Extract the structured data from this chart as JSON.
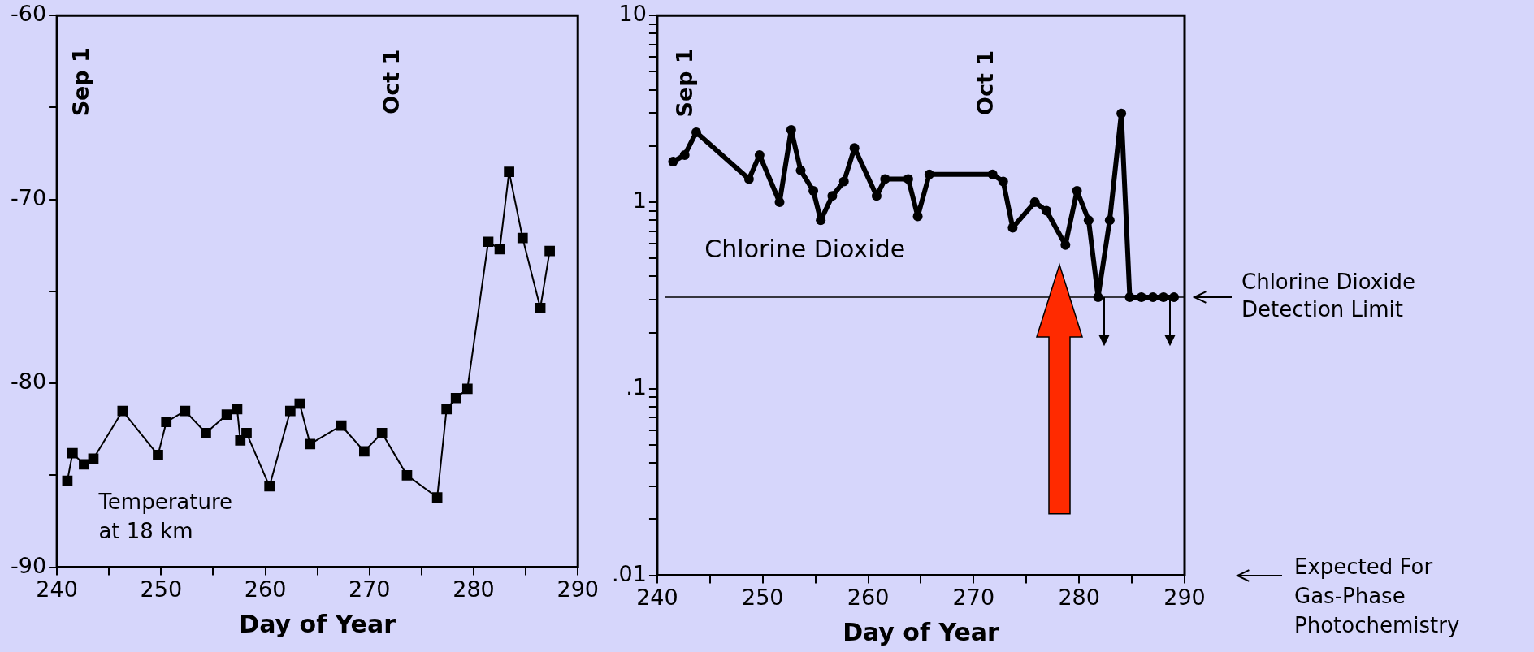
{
  "chart_data": [
    {
      "type": "line",
      "xlabel": "Day of Year",
      "marker": "square",
      "line_style": "solid",
      "legend": false,
      "grid": false,
      "xlim": [
        240,
        290
      ],
      "xticks": [
        240,
        {
          "value": 245,
          "label": null
        },
        250,
        {
          "value": 255,
          "label": null
        },
        260,
        {
          "value": 265,
          "label": null
        },
        270,
        {
          "value": 275,
          "label": null
        },
        280,
        {
          "value": 285,
          "label": null
        },
        290
      ],
      "ylim": [
        -90,
        -60
      ],
      "yticks": [
        -90,
        {
          "value": -85,
          "label": null
        },
        -80,
        {
          "value": -75,
          "label": null
        },
        -70,
        {
          "value": -65,
          "label": null
        },
        -60
      ],
      "annotations": [
        "Sep 1",
        "Oct 1"
      ],
      "series": [
        {
          "name": "Temperature at 18 km",
          "color": "#000000",
          "x": [
            241.0,
            241.5,
            242.6,
            243.5,
            246.3,
            249.7,
            250.5,
            252.3,
            254.3,
            256.3,
            257.3,
            257.6,
            258.2,
            260.4,
            262.4,
            263.3,
            264.3,
            267.3,
            269.5,
            271.2,
            273.6,
            276.5,
            277.4,
            278.3,
            279.4,
            281.4,
            282.5,
            283.4,
            284.7,
            286.4,
            287.3
          ],
          "values": [
            -85.3,
            -83.8,
            -84.4,
            -84.1,
            -81.5,
            -83.9,
            -82.1,
            -81.5,
            -82.7,
            -81.7,
            -81.4,
            -83.1,
            -82.7,
            -85.6,
            -81.5,
            -81.1,
            -83.3,
            -82.3,
            -83.7,
            -82.7,
            -85.0,
            -86.2,
            -81.4,
            -80.8,
            -80.3,
            -72.3,
            -72.7,
            -68.5,
            -72.1,
            -75.9,
            -72.8
          ]
        }
      ]
    },
    {
      "type": "line",
      "xlabel": "Day of Year",
      "marker": "circle",
      "line_style": "solid",
      "legend": false,
      "grid": false,
      "log": "y",
      "xlim": [
        240,
        290
      ],
      "xticks": [
        240,
        {
          "value": 245,
          "label": null
        },
        250,
        {
          "value": 255,
          "label": null
        },
        260,
        {
          "value": 265,
          "label": null
        },
        270,
        {
          "value": 275,
          "label": null
        },
        280,
        {
          "value": 285,
          "label": null
        },
        290
      ],
      "ylim": [
        0.01,
        10
      ],
      "yticks": [
        {
          "value": 0.01,
          "label": ".01"
        },
        {
          "value": 0.02,
          "label": null
        },
        {
          "value": 0.03,
          "label": null
        },
        {
          "value": 0.04,
          "label": null
        },
        {
          "value": 0.05,
          "label": null
        },
        {
          "value": 0.06,
          "label": null
        },
        {
          "value": 0.07,
          "label": null
        },
        {
          "value": 0.08,
          "label": null
        },
        {
          "value": 0.09,
          "label": null
        },
        {
          "value": 0.1,
          "label": ".1"
        },
        {
          "value": 0.2,
          "label": null
        },
        {
          "value": 0.3,
          "label": null
        },
        {
          "value": 0.4,
          "label": null
        },
        {
          "value": 0.5,
          "label": null
        },
        {
          "value": 0.6,
          "label": null
        },
        {
          "value": 0.7,
          "label": null
        },
        {
          "value": 0.8,
          "label": null
        },
        {
          "value": 0.9,
          "label": null
        },
        1,
        {
          "value": 2,
          "label": null
        },
        {
          "value": 3,
          "label": null
        },
        {
          "value": 4,
          "label": null
        },
        {
          "value": 5,
          "label": null
        },
        {
          "value": 6,
          "label": null
        },
        {
          "value": 7,
          "label": null
        },
        {
          "value": 8,
          "label": null
        },
        {
          "value": 9,
          "label": null
        },
        10
      ],
      "ref_lines": [
        {
          "axis": "y",
          "value": 0.31,
          "label": "Chlorine Dioxide Detection Limit",
          "color": "#000000"
        }
      ],
      "annotations": [
        "Sep 1",
        "Oct 1",
        "Expected For Gas-Phase Photochemistry"
      ],
      "series": [
        {
          "name": "Chlorine Dioxide",
          "color": "#000000",
          "x": [
            241.5,
            242.6,
            243.7,
            248.7,
            249.7,
            251.6,
            252.7,
            253.6,
            254.8,
            255.5,
            256.6,
            257.7,
            258.7,
            260.8,
            261.6,
            263.8,
            264.7,
            265.8,
            271.8,
            272.8,
            273.7,
            275.8,
            276.9,
            278.7,
            279.8,
            280.9,
            281.8,
            282.9,
            284.0,
            284.8,
            285.9,
            287.0,
            288.0,
            289.0
          ],
          "values": [
            1.65,
            1.79,
            2.37,
            1.33,
            1.79,
            1.0,
            2.44,
            1.48,
            1.15,
            0.8,
            1.08,
            1.29,
            1.95,
            1.08,
            1.33,
            1.33,
            0.84,
            1.41,
            1.41,
            1.29,
            0.73,
            1.0,
            0.9,
            0.59,
            1.15,
            0.8,
            0.31,
            0.8,
            2.99,
            0.31,
            0.31,
            0.31,
            0.31,
            0.31
          ]
        }
      ]
    }
  ]
}
